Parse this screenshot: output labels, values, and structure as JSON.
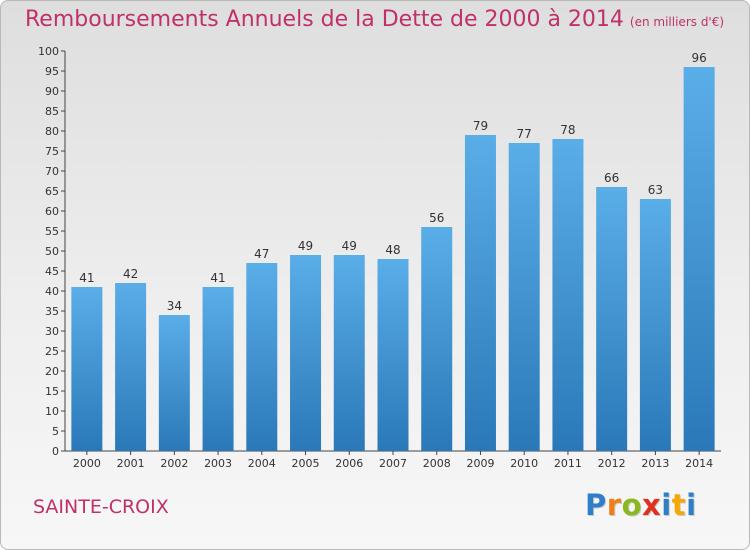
{
  "chart_data": {
    "type": "bar",
    "title": "Remboursements Annuels de la Dette de 2000 à 2014",
    "subtitle": "(en milliers d'€)",
    "categories": [
      "2000",
      "2001",
      "2002",
      "2003",
      "2004",
      "2005",
      "2006",
      "2007",
      "2008",
      "2009",
      "2010",
      "2011",
      "2012",
      "2013",
      "2014"
    ],
    "values": [
      41,
      42,
      34,
      41,
      47,
      49,
      49,
      48,
      56,
      79,
      77,
      78,
      66,
      63,
      96
    ],
    "ylim": [
      0,
      100
    ],
    "yticks": [
      0,
      5,
      10,
      15,
      20,
      25,
      30,
      35,
      40,
      45,
      50,
      55,
      60,
      65,
      70,
      75,
      80,
      85,
      90,
      95,
      100
    ],
    "grid": false,
    "colors": {
      "bar_top": "#5aaee8",
      "bar_bottom": "#2a78b8",
      "title": "#c0306a"
    }
  },
  "footer": {
    "commune": "SAINTE-CROIX",
    "logo_letters": [
      {
        "ch": "P",
        "color": "#2f7fc8"
      },
      {
        "ch": "r",
        "color": "#f07f1a"
      },
      {
        "ch": "o",
        "color": "#89b820"
      },
      {
        "ch": "x",
        "color": "#e03020"
      },
      {
        "ch": "i",
        "color": "#2f7fc8"
      },
      {
        "ch": "t",
        "color": "#f5a800"
      },
      {
        "ch": "i",
        "color": "#2f7fc8"
      }
    ]
  }
}
